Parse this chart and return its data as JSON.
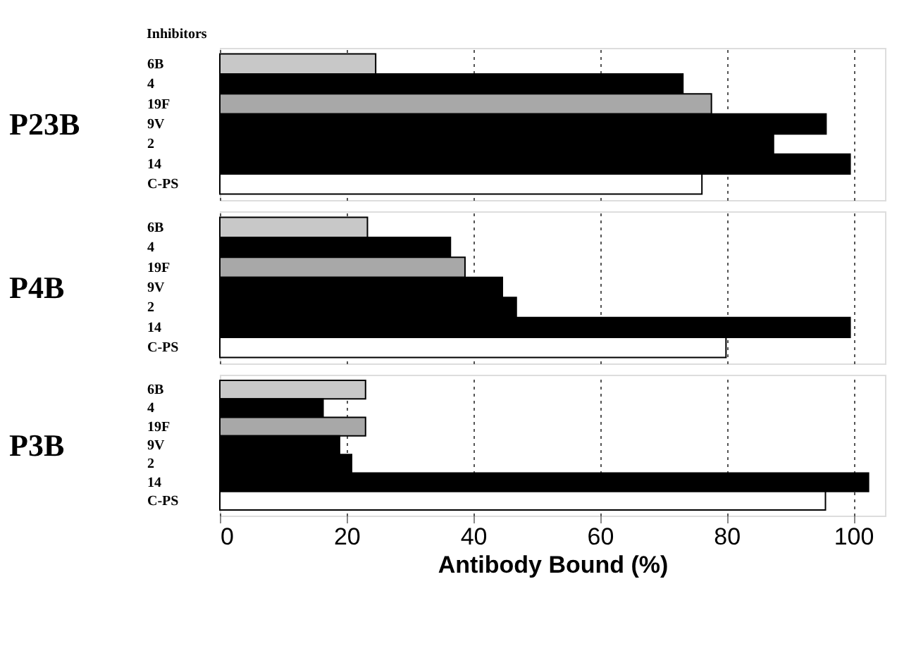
{
  "chart_data": [
    {
      "type": "bar",
      "orientation": "horizontal",
      "ylabel": "P23B",
      "annotations": [
        "Inhibitors"
      ],
      "categories": [
        "6B",
        "4",
        "19F",
        "9V",
        "2",
        "14",
        "C-PS"
      ],
      "values": [
        24.6,
        73.1,
        77.6,
        95.7,
        87.4,
        99.5,
        76.1
      ],
      "colors": [
        "#c8c8c8",
        "#000000",
        "#a8a8a8",
        "#000000",
        "#000000",
        "#000000",
        "#ffffff"
      ],
      "xlim": [
        0,
        105
      ],
      "xticks": [
        0,
        20,
        40,
        60,
        80,
        100
      ],
      "grid": "x",
      "tick_labels": "y"
    },
    {
      "type": "bar",
      "orientation": "horizontal",
      "ylabel": "P4B",
      "categories": [
        "6B",
        "4",
        "19F",
        "9V",
        "2",
        "14",
        "C-PS"
      ],
      "values": [
        23.3,
        36.4,
        38.7,
        44.6,
        46.8,
        99.5,
        79.9
      ],
      "colors": [
        "#c8c8c8",
        "#000000",
        "#a8a8a8",
        "#000000",
        "#000000",
        "#000000",
        "#ffffff"
      ],
      "xlim": [
        0,
        105
      ],
      "xticks": [
        0,
        20,
        40,
        60,
        80,
        100
      ],
      "grid": "x",
      "tick_labels": "y"
    },
    {
      "type": "bar",
      "orientation": "horizontal",
      "ylabel": "P3B",
      "xlabel": "Antibody Bound (%)",
      "categories": [
        "6B",
        "4",
        "19F",
        "9V",
        "2",
        "14",
        "C-PS"
      ],
      "values": [
        23.0,
        16.3,
        23.0,
        18.9,
        20.8,
        102.4,
        95.6
      ],
      "colors": [
        "#c8c8c8",
        "#000000",
        "#a8a8a8",
        "#000000",
        "#000000",
        "#000000",
        "#ffffff"
      ],
      "xlim": [
        0,
        105
      ],
      "xticks": [
        0,
        20,
        40,
        60,
        80,
        100
      ],
      "grid": "x"
    }
  ]
}
